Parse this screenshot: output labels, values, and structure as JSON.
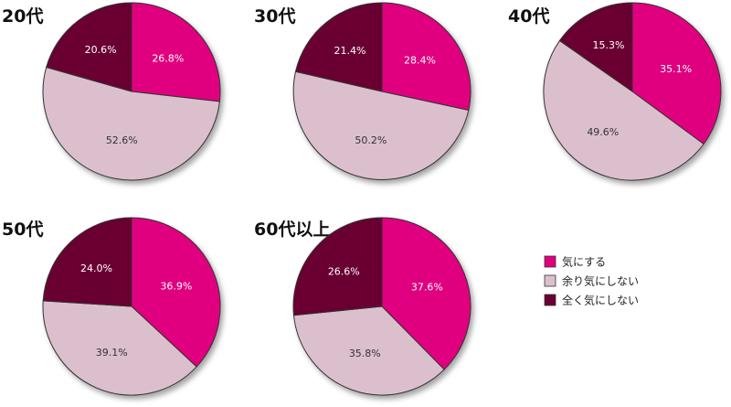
{
  "chart_data": {
    "type": "pie",
    "colors": [
      "#e0007f",
      "#dcbfcd",
      "#6a0031"
    ],
    "legend_position": "right",
    "legend": [
      "気にする",
      "余り気にしない",
      "全く気にしない"
    ],
    "charts": [
      {
        "title": "20代",
        "values": [
          26.8,
          52.6,
          20.6
        ],
        "labels": [
          "26.8%",
          "52.6%",
          "20.6%"
        ]
      },
      {
        "title": "30代",
        "values": [
          28.4,
          50.2,
          21.4
        ],
        "labels": [
          "28.4%",
          "50.2%",
          "21.4%"
        ]
      },
      {
        "title": "40代",
        "values": [
          35.1,
          49.6,
          15.3
        ],
        "labels": [
          "35.1%",
          "49.6%",
          "15.3%"
        ]
      },
      {
        "title": "50代",
        "values": [
          36.9,
          39.1,
          24.0
        ],
        "labels": [
          "36.9%",
          "39.1%",
          "24.0%"
        ]
      },
      {
        "title": "60代以上",
        "values": [
          37.6,
          35.8,
          26.6
        ],
        "labels": [
          "37.6%",
          "35.8%",
          "26.6%"
        ]
      }
    ]
  }
}
